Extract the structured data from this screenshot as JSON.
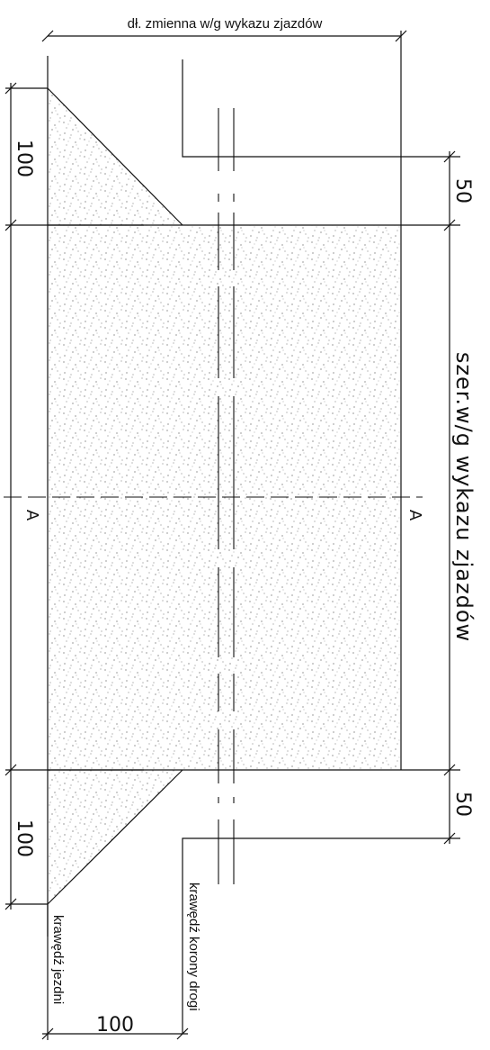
{
  "drawing": {
    "top_dimension_label": "dł. zmienna w/g wykazu zjazdów",
    "width_dimension_label": "szer.w/g wykazu zjazdów",
    "upper_left_dimension": "100",
    "lower_left_dimension": "100",
    "upper_right_dimension": "50",
    "lower_right_dimension": "50",
    "bottom_dimension": "100",
    "section_marker_left": "A",
    "section_marker_right": "A",
    "label_carriageway_edge": "krawędź jezdni",
    "label_road_crown_edge": "krawędź korony drogi"
  },
  "colors": {
    "line": "#111111",
    "hatch_dots": "#555555",
    "background": "#ffffff"
  }
}
